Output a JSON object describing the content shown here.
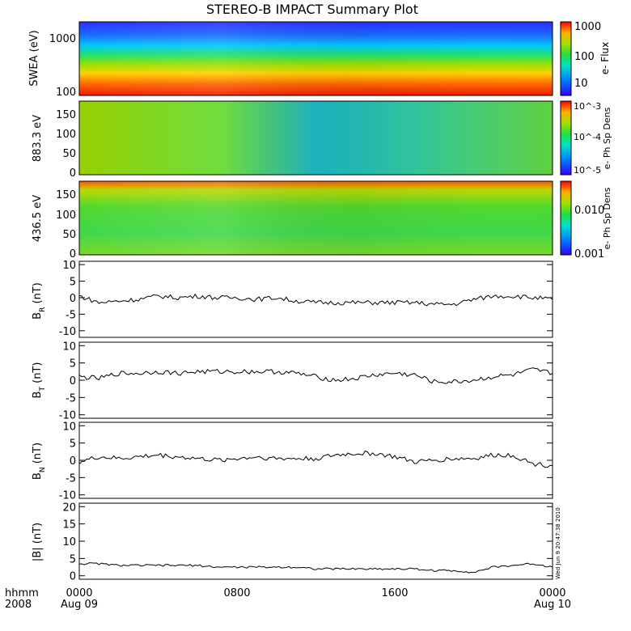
{
  "title": "STEREO-B IMPACT Summary Plot",
  "footer": {
    "hhmm": "hhmm",
    "year": "2008",
    "x_ticks": [
      "0000",
      "0800",
      "1600",
      "0000"
    ],
    "x_dates": [
      "Aug 09",
      "",
      "",
      "Aug 10"
    ]
  },
  "stamp": "Wed Jun  9 20:47:38 2010",
  "colors": {
    "frame": "#000000",
    "line": "#000000",
    "colorbar_low": "#3300ff",
    "colorbar_high": "#ff0000"
  },
  "chart_data": [
    {
      "type": "heatmap",
      "ylabel": "SWEA (eV)",
      "y_scale": "log",
      "y_ticks": [
        "1000",
        "100"
      ],
      "colorbar_label": "e- Flux",
      "colorbar_ticks": [
        "1000",
        "100",
        "10"
      ],
      "colorbar_scale": "log",
      "colorbar_range": [
        3,
        2000
      ],
      "description_rows": [
        {
          "energy_eV": 1800,
          "value": 8
        },
        {
          "energy_eV": 1000,
          "value": 15
        },
        {
          "energy_eV": 600,
          "value": 50
        },
        {
          "energy_eV": 400,
          "value": 120
        },
        {
          "energy_eV": 250,
          "value": 400
        },
        {
          "energy_eV": 150,
          "value": 1000
        },
        {
          "energy_eV": 100,
          "value": 1500
        }
      ]
    },
    {
      "type": "heatmap",
      "ylabel": "883.3 eV",
      "y_ticks": [
        "150",
        "100",
        "50",
        "0"
      ],
      "ylim": [
        0,
        180
      ],
      "colorbar_label": "e- Ph Sp Dens",
      "colorbar_ticks": [
        "10^-3",
        "10^-4",
        "10^-5"
      ],
      "colorbar_scale": "log",
      "colorbar_range": [
        4e-06,
        0.0015
      ]
    },
    {
      "type": "heatmap",
      "ylabel": "436.5 eV",
      "y_ticks": [
        "150",
        "100",
        "50",
        "0"
      ],
      "ylim": [
        0,
        180
      ],
      "colorbar_label": "e- Ph Sp Dens",
      "colorbar_ticks": [
        "0.010",
        "0.001"
      ],
      "colorbar_scale": "log",
      "colorbar_range": [
        0.001,
        0.05
      ]
    },
    {
      "type": "line",
      "ylabel": "BR (nT)",
      "ylabel_main": "B",
      "ylabel_sub": "R",
      "ylabel_unit": " (nT)",
      "ylim": [
        -12,
        11
      ],
      "y_ticks": [
        10,
        5,
        0,
        -5,
        -10
      ],
      "x_hours": [
        0,
        1,
        2,
        3,
        4,
        5,
        6,
        7,
        8,
        9,
        10,
        11,
        12,
        13,
        14,
        15,
        16,
        17,
        18,
        19,
        20,
        21,
        22,
        23,
        24
      ],
      "values": [
        0.5,
        -1.5,
        -1,
        -0.5,
        0.5,
        0,
        0.5,
        0,
        0,
        -0.5,
        0,
        -1,
        -1.5,
        -1.5,
        -1.5,
        -1.5,
        -1.5,
        -1.5,
        -2,
        -2,
        -0.5,
        0.5,
        0.5,
        0,
        -0.5
      ]
    },
    {
      "type": "line",
      "ylabel": "BT (nT)",
      "ylabel_main": "B",
      "ylabel_sub": "T",
      "ylabel_unit": " (nT)",
      "ylim": [
        -11,
        11
      ],
      "y_ticks": [
        10,
        5,
        0,
        -5,
        -10
      ],
      "x_hours": [
        0,
        1,
        2,
        3,
        4,
        5,
        6,
        7,
        8,
        9,
        10,
        11,
        12,
        13,
        14,
        15,
        16,
        17,
        18,
        19,
        20,
        21,
        22,
        23,
        24
      ],
      "values": [
        1,
        0.5,
        2,
        2,
        2.5,
        2,
        2.5,
        2.5,
        2.5,
        2.5,
        2.5,
        2,
        1,
        0,
        0.5,
        1.5,
        2,
        1.5,
        -0.5,
        -0.5,
        0,
        1,
        1.5,
        3,
        2
      ]
    },
    {
      "type": "line",
      "ylabel": "BN (nT)",
      "ylabel_main": "B",
      "ylabel_sub": "N",
      "ylabel_unit": " (nT)",
      "ylim": [
        -11,
        11
      ],
      "y_ticks": [
        10,
        5,
        0,
        -5,
        -10
      ],
      "x_hours": [
        0,
        1,
        2,
        3,
        4,
        5,
        6,
        7,
        8,
        9,
        10,
        11,
        12,
        13,
        14,
        15,
        16,
        17,
        18,
        19,
        20,
        21,
        22,
        23,
        24
      ],
      "values": [
        -0.5,
        1,
        0.5,
        1,
        1.5,
        1,
        0.5,
        0,
        0.5,
        1,
        0.5,
        0.5,
        0.5,
        1.5,
        2,
        2,
        1,
        -0.5,
        0,
        0.5,
        0.5,
        1.5,
        1.5,
        -1,
        -1.5
      ]
    },
    {
      "type": "line",
      "ylabel": "|B| (nT)",
      "ylim": [
        -1,
        21
      ],
      "y_ticks": [
        20,
        15,
        10,
        5,
        0
      ],
      "x_hours": [
        0,
        1,
        2,
        3,
        4,
        5,
        6,
        7,
        8,
        9,
        10,
        11,
        12,
        13,
        14,
        15,
        16,
        17,
        18,
        19,
        20,
        21,
        22,
        23,
        24
      ],
      "values": [
        3.5,
        3.5,
        3,
        3,
        3,
        3,
        3,
        2.5,
        2.5,
        2.5,
        2.5,
        2.5,
        2,
        2,
        2,
        2,
        2,
        2,
        1.5,
        1.5,
        1,
        2.5,
        3,
        3.5,
        2.5
      ]
    }
  ]
}
